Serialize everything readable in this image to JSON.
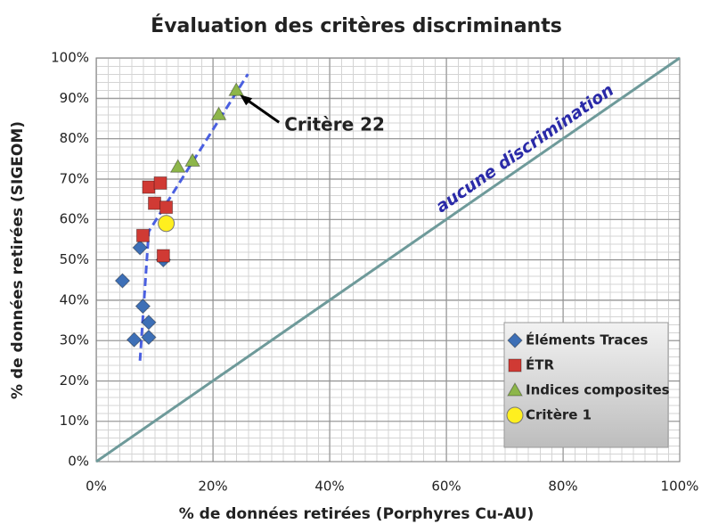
{
  "chart_data": {
    "type": "scatter",
    "title": "Évaluation des critères discriminants",
    "x_label": "% de données retirées (Porphyres Cu-AU)",
    "y_label": "% de données retirées (SIGEOM)",
    "xlim": [
      0,
      100
    ],
    "ylim": [
      0,
      100
    ],
    "xticks": [
      {
        "value": 0,
        "label": "0%"
      },
      {
        "value": 20,
        "label": "20%"
      },
      {
        "value": 40,
        "label": "40%"
      },
      {
        "value": 60,
        "label": "60%"
      },
      {
        "value": 80,
        "label": "80%"
      },
      {
        "value": 100,
        "label": "100%"
      }
    ],
    "yticks": [
      {
        "value": 0,
        "label": "0%"
      },
      {
        "value": 10,
        "label": "10%"
      },
      {
        "value": 20,
        "label": "20%"
      },
      {
        "value": 30,
        "label": "30%"
      },
      {
        "value": 40,
        "label": "40%"
      },
      {
        "value": 50,
        "label": "50%"
      },
      {
        "value": 60,
        "label": "60%"
      },
      {
        "value": 70,
        "label": "70%"
      },
      {
        "value": 80,
        "label": "80%"
      },
      {
        "value": 90,
        "label": "90%"
      },
      {
        "value": 100,
        "label": "100%"
      }
    ],
    "grid": true,
    "legend": "lower right",
    "series": [
      {
        "name": "Éléments Traces",
        "color": "#3d6fb6",
        "marker": "diamond",
        "x": [
          4.5,
          6.5,
          9,
          8,
          9,
          7.5,
          11.5
        ],
        "values": [
          44.8,
          30.2,
          30.8,
          38.5,
          34.5,
          53,
          50
        ]
      },
      {
        "name": "ÉTR",
        "color": "#d03a34",
        "marker": "square",
        "x": [
          8,
          9,
          10,
          11,
          12,
          11.5
        ],
        "values": [
          56,
          68,
          64,
          69,
          63,
          51
        ]
      },
      {
        "name": "Indices composites",
        "color": "#8db64a",
        "marker": "triangle",
        "x": [
          14,
          16.5,
          21,
          24
        ],
        "values": [
          73,
          74.5,
          86,
          92
        ]
      },
      {
        "name": "Critère 1",
        "color": "#ffef1f",
        "marker": "circle",
        "x": [
          12
        ],
        "values": [
          59
        ]
      }
    ],
    "trend_line": {
      "color": "#4a5fe0",
      "x": [
        7.5,
        9,
        26
      ],
      "values": [
        25,
        57,
        96
      ]
    },
    "reference_line": {
      "label": "aucune discrimination",
      "color": "#6e9a9a",
      "x": [
        0,
        100
      ],
      "values": [
        0,
        100
      ]
    },
    "annotation": {
      "text": "Critère 22",
      "series": 2,
      "point": 3
    }
  }
}
